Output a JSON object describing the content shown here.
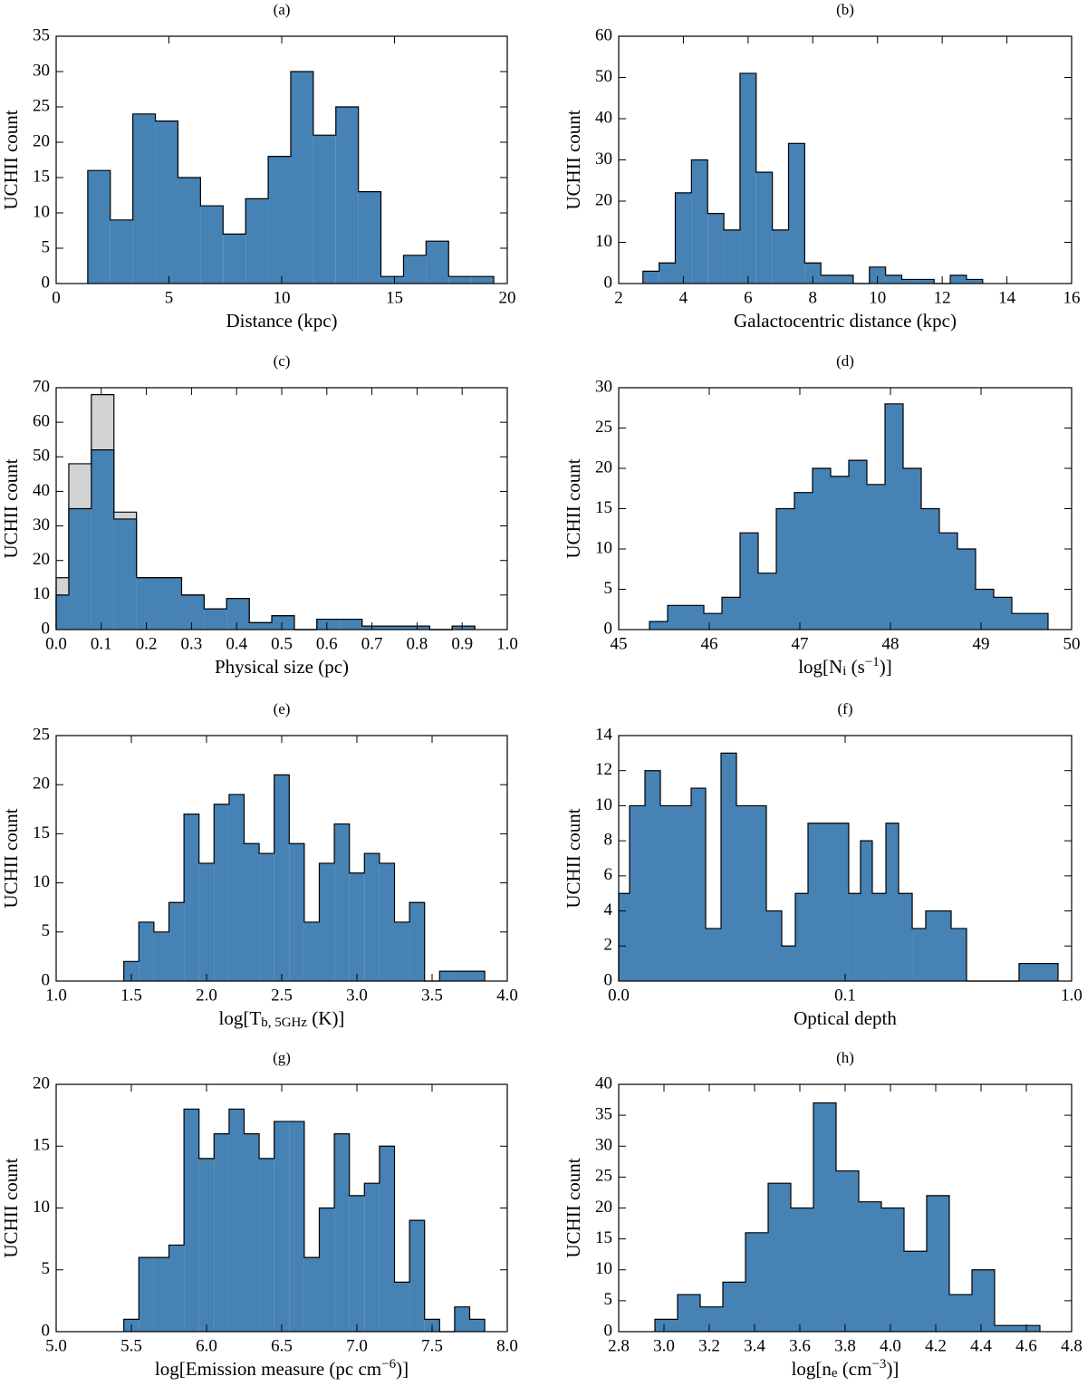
{
  "chart_data": [
    {
      "type": "histogram",
      "title": "(a)",
      "xlabel": "Distance (kpc)",
      "ylabel": "UCHII count",
      "bins": [
        1.4,
        2.4,
        3.4,
        4.4,
        5.4,
        6.4,
        7.4,
        8.4,
        9.4,
        10.4,
        11.4,
        12.4,
        13.4,
        14.4,
        15.4,
        16.4,
        17.4,
        18.4,
        19.4
      ],
      "series": [
        {
          "color": "#4682b4",
          "counts": [
            16,
            9,
            24,
            23,
            15,
            11,
            7,
            12,
            18,
            30,
            21,
            25,
            13,
            1,
            4,
            6,
            1,
            1
          ]
        }
      ],
      "xlim": [
        0,
        20
      ],
      "xticks": [
        0,
        5,
        10,
        15,
        20
      ],
      "ylim": [
        0,
        35
      ],
      "yticks": [
        0,
        5,
        10,
        15,
        20,
        25,
        30,
        35
      ]
    },
    {
      "type": "histogram",
      "title": "(b)",
      "xlabel": "Galactocentric distance (kpc)",
      "ylabel": "UCHII count",
      "bins": [
        2.75,
        3.25,
        3.75,
        4.25,
        4.75,
        5.25,
        5.75,
        6.25,
        6.75,
        7.25,
        7.75,
        8.25,
        8.75,
        9.25,
        9.75,
        10.25,
        10.75,
        11.25,
        11.75,
        12.25,
        12.75,
        13.25
      ],
      "series": [
        {
          "color": "#4682b4",
          "counts": [
            3,
            5,
            22,
            30,
            17,
            13,
            51,
            27,
            13,
            34,
            5,
            2,
            2,
            0,
            4,
            2,
            1,
            1,
            0,
            2,
            1
          ]
        }
      ],
      "xlim": [
        2,
        16
      ],
      "xticks": [
        2,
        4,
        6,
        8,
        10,
        12,
        14,
        16
      ],
      "ylim": [
        0,
        60
      ],
      "yticks": [
        0,
        10,
        20,
        30,
        40,
        50,
        60
      ]
    },
    {
      "type": "histogram",
      "title": "(c)",
      "xlabel": "Physical size (pc)",
      "ylabel": "UCHII count",
      "bins": [
        0,
        0.028,
        0.078,
        0.128,
        0.178,
        0.228,
        0.278,
        0.328,
        0.378,
        0.428,
        0.478,
        0.528,
        0.578,
        0.628,
        0.678,
        0.728,
        0.778,
        0.828,
        0.878,
        0.928
      ],
      "series": [
        {
          "color": "#d3d3d3",
          "counts": [
            15,
            48,
            68,
            34,
            15,
            15,
            10,
            6,
            9,
            2,
            4,
            0,
            3,
            3,
            1,
            1,
            1,
            0,
            1
          ]
        },
        {
          "color": "#4682b4",
          "counts": [
            10,
            35,
            52,
            32,
            15,
            15,
            10,
            6,
            9,
            2,
            4,
            0,
            3,
            3,
            1,
            1,
            1,
            0,
            1
          ]
        }
      ],
      "xlim": [
        0,
        1
      ],
      "xticks": [
        {
          "value": 0,
          "label": "0.0"
        },
        0.1,
        0.2,
        0.3,
        0.4,
        0.5,
        0.6,
        0.7,
        0.8,
        0.9,
        {
          "value": 1,
          "label": "1.0"
        }
      ],
      "ylim": [
        0,
        70
      ],
      "yticks": [
        0,
        10,
        20,
        30,
        40,
        50,
        60,
        70
      ]
    },
    {
      "type": "histogram",
      "title": "(d)",
      "xlabel": "log[N_{i} (s^{−1})]",
      "ylabel": "UCHII count",
      "bins": [
        45.34,
        45.54,
        45.74,
        45.94,
        46.14,
        46.34,
        46.54,
        46.74,
        46.94,
        47.14,
        47.34,
        47.54,
        47.74,
        47.94,
        48.14,
        48.34,
        48.54,
        48.74,
        48.94,
        49.14,
        49.34,
        49.54,
        49.74
      ],
      "series": [
        {
          "color": "#4682b4",
          "counts": [
            1,
            3,
            3,
            2,
            4,
            12,
            7,
            15,
            17,
            20,
            19,
            21,
            18,
            28,
            20,
            15,
            12,
            10,
            5,
            4,
            2,
            2
          ]
        }
      ],
      "xlim": [
        45,
        50
      ],
      "xticks": [
        45,
        46,
        47,
        48,
        49,
        50
      ],
      "ylim": [
        0,
        30
      ],
      "yticks": [
        0,
        5,
        10,
        15,
        20,
        25,
        30
      ]
    },
    {
      "type": "histogram",
      "title": "(e)",
      "xlabel": "log[T_{b, 5GHz} (K)]",
      "ylabel": "UCHII count",
      "bins": [
        1.45,
        1.55,
        1.65,
        1.75,
        1.85,
        1.95,
        2.05,
        2.15,
        2.25,
        2.35,
        2.45,
        2.55,
        2.65,
        2.75,
        2.85,
        2.95,
        3.05,
        3.15,
        3.25,
        3.35,
        3.45,
        3.55,
        3.65,
        3.75,
        3.85
      ],
      "series": [
        {
          "color": "#4682b4",
          "counts": [
            2,
            6,
            5,
            8,
            17,
            12,
            18,
            19,
            14,
            13,
            21,
            14,
            6,
            12,
            16,
            11,
            13,
            12,
            6,
            8,
            0,
            1,
            1,
            1
          ]
        }
      ],
      "xlim": [
        1,
        4
      ],
      "xticks": [
        {
          "value": 1,
          "label": "1.0"
        },
        1.5,
        {
          "value": 2,
          "label": "2.0"
        },
        2.5,
        {
          "value": 3,
          "label": "3.0"
        },
        3.5,
        {
          "value": 4,
          "label": "4.0"
        }
      ],
      "ylim": [
        0,
        25
      ],
      "yticks": [
        0,
        5,
        10,
        15,
        20,
        25
      ]
    },
    {
      "type": "histogram",
      "title": "(f)",
      "xlabel": "Optical depth",
      "ylabel": "UCHII count",
      "xscale": "symlog",
      "linthresh": 0.1,
      "bins": [
        0,
        0.0048,
        0.0116,
        0.0184,
        0.0252,
        0.032,
        0.0384,
        0.0452,
        0.052,
        0.0588,
        0.0652,
        0.072,
        0.078,
        0.0836,
        0.0896,
        0.0956,
        0.1037,
        0.1169,
        0.1318,
        0.1514,
        0.1722,
        0.1978,
        0.2269,
        0.2582,
        0.2938,
        0.3436,
        0.586,
        0.871
      ],
      "series": [
        {
          "color": "#4682b4",
          "counts": [
            5,
            10,
            12,
            10,
            10,
            11,
            3,
            13,
            10,
            10,
            4,
            2,
            5,
            9,
            9,
            9,
            5,
            8,
            5,
            9,
            5,
            3,
            4,
            4,
            3,
            0,
            1
          ]
        }
      ],
      "xlim": [
        0,
        1
      ],
      "xticks": [
        {
          "value": 0,
          "label": "0.0"
        },
        0.1,
        {
          "value": 1,
          "label": "1.0"
        }
      ],
      "ylim": [
        0,
        14
      ],
      "yticks": [
        0,
        2,
        4,
        6,
        8,
        10,
        12,
        14
      ]
    },
    {
      "type": "histogram",
      "title": "(g)",
      "xlabel": "log[Emission measure (pc cm^{−6})]",
      "ylabel": "UCHII count",
      "bins": [
        5.45,
        5.55,
        5.65,
        5.75,
        5.85,
        5.95,
        6.05,
        6.15,
        6.25,
        6.35,
        6.45,
        6.55,
        6.65,
        6.75,
        6.85,
        6.95,
        7.05,
        7.15,
        7.25,
        7.35,
        7.45,
        7.55,
        7.65,
        7.75,
        7.85
      ],
      "series": [
        {
          "color": "#4682b4",
          "counts": [
            1,
            6,
            6,
            7,
            18,
            14,
            16,
            18,
            16,
            14,
            17,
            17,
            6,
            10,
            16,
            11,
            12,
            15,
            4,
            9,
            1,
            0,
            2,
            1
          ]
        }
      ],
      "xlim": [
        5,
        8
      ],
      "xticks": [
        {
          "value": 5,
          "label": "5.0"
        },
        5.5,
        {
          "value": 6,
          "label": "6.0"
        },
        6.5,
        {
          "value": 7,
          "label": "7.0"
        },
        7.5,
        {
          "value": 8,
          "label": "8.0"
        }
      ],
      "ylim": [
        0,
        20
      ],
      "yticks": [
        0,
        5,
        10,
        15,
        20
      ]
    },
    {
      "type": "histogram",
      "title": "(h)",
      "xlabel": "log[n_{e} (cm^{−3})]",
      "ylabel": "UCHII count",
      "bins": [
        2.96,
        3.06,
        3.16,
        3.26,
        3.36,
        3.46,
        3.56,
        3.66,
        3.76,
        3.86,
        3.96,
        4.06,
        4.16,
        4.26,
        4.36,
        4.46,
        4.56,
        4.66
      ],
      "series": [
        {
          "color": "#4682b4",
          "counts": [
            2,
            6,
            4,
            8,
            16,
            24,
            20,
            37,
            26,
            21,
            20,
            13,
            22,
            6,
            10,
            1,
            1
          ]
        }
      ],
      "xlim": [
        2.8,
        4.8
      ],
      "xticks": [
        2.8,
        {
          "value": 3,
          "label": "3.0"
        },
        3.2,
        3.4,
        3.6,
        3.8,
        {
          "value": 4,
          "label": "4.0"
        },
        4.2,
        4.4,
        4.6,
        4.8
      ],
      "ylim": [
        0,
        40
      ],
      "yticks": [
        0,
        5,
        10,
        15,
        20,
        25,
        30,
        35,
        40
      ]
    }
  ]
}
